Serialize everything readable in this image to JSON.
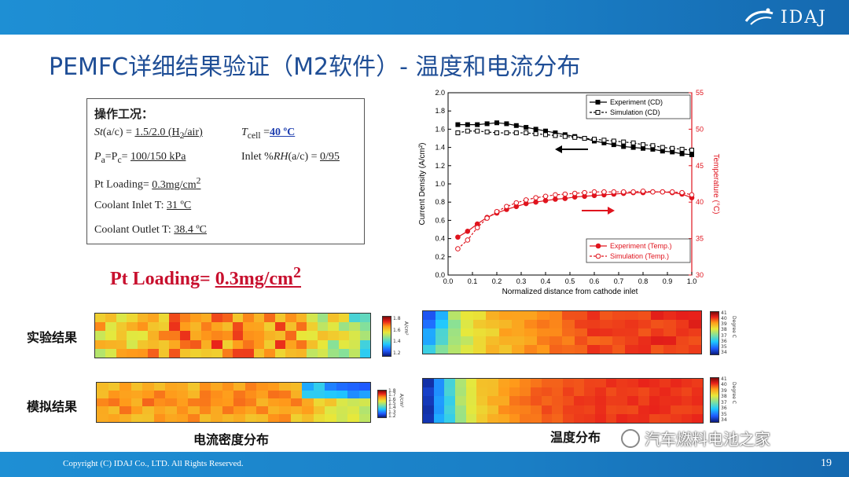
{
  "header": {
    "logo_text": "IDAJ"
  },
  "title": "PEMFC详细结果验证（M2软件）- 温度和电流分布",
  "conditions": {
    "heading": "操作工况：",
    "st_label": "St",
    "st_mid": "(a/c) = ",
    "st_val": "1.5/2.0 (H",
    "st_sub": "2",
    "st_tail": "/air)",
    "t_label": "T",
    "t_sub": "cell",
    "t_eq": " =",
    "t_val": "40 ºC",
    "p_label": "P",
    "p_sub_a": "a",
    "p_mid": "=P",
    "p_sub_c": "c",
    "p_eq": "= ",
    "p_val": "100/150 kPa",
    "rh_label": "Inlet %",
    "rh_italic": "RH",
    "rh_mid": "(a/c) = ",
    "rh_val": "0/95",
    "pt_label": "Pt Loading= ",
    "pt_val": "0.3mg/cm",
    "pt_sup": "2",
    "ci_label": "Coolant Inlet T: ",
    "ci_val": "31 ºC",
    "co_label": "Coolant Outlet T: ",
    "co_val": "38.4 ºC"
  },
  "pt_loading_big": {
    "label": "Pt Loading= ",
    "value": "0.3mg/cm",
    "sup": "2"
  },
  "chart_data": {
    "type": "line",
    "xlabel": "Normalized distance from cathode inlet",
    "ylabel_left": "Current Density (A/cm²)",
    "ylabel_right": "Temperature (°C)",
    "xlim": [
      0.0,
      1.0
    ],
    "ylim_left": [
      0.0,
      2.0
    ],
    "ylim_right": [
      30,
      55
    ],
    "x_ticks": [
      "0.0",
      "0.1",
      "0.2",
      "0.3",
      "0.4",
      "0.5",
      "0.6",
      "0.7",
      "0.8",
      "0.9",
      "1.0"
    ],
    "yl_ticks": [
      "0.0",
      "0.2",
      "0.4",
      "0.6",
      "0.8",
      "1.0",
      "1.2",
      "1.4",
      "1.6",
      "1.8",
      "2.0"
    ],
    "yr_ticks": [
      "30",
      "35",
      "40",
      "45",
      "50",
      "55"
    ],
    "colors": {
      "cd": "#000000",
      "temp": "#e0141e",
      "axis_right": "#e0141e"
    },
    "legend_cd": [
      "Experiment (CD)",
      "Simulation  (CD)"
    ],
    "legend_temp": [
      "Experiment (Temp.)",
      "Simulation  (Temp.)"
    ],
    "series": [
      {
        "name": "Experiment (CD)",
        "axis": "left",
        "filled": true,
        "x": [
          0.04,
          0.08,
          0.12,
          0.16,
          0.2,
          0.24,
          0.28,
          0.32,
          0.36,
          0.4,
          0.44,
          0.48,
          0.52,
          0.56,
          0.6,
          0.64,
          0.68,
          0.72,
          0.76,
          0.8,
          0.84,
          0.88,
          0.92,
          0.96,
          1.0
        ],
        "y": [
          1.65,
          1.65,
          1.65,
          1.66,
          1.67,
          1.66,
          1.64,
          1.62,
          1.6,
          1.58,
          1.56,
          1.54,
          1.52,
          1.5,
          1.47,
          1.45,
          1.43,
          1.41,
          1.4,
          1.39,
          1.38,
          1.36,
          1.35,
          1.33,
          1.32
        ]
      },
      {
        "name": "Simulation  (CD)",
        "axis": "left",
        "filled": false,
        "x": [
          0.04,
          0.08,
          0.12,
          0.16,
          0.2,
          0.24,
          0.28,
          0.32,
          0.36,
          0.4,
          0.44,
          0.48,
          0.52,
          0.56,
          0.6,
          0.64,
          0.68,
          0.72,
          0.76,
          0.8,
          0.84,
          0.88,
          0.92,
          0.96,
          1.0
        ],
        "y": [
          1.56,
          1.58,
          1.58,
          1.57,
          1.56,
          1.56,
          1.56,
          1.56,
          1.55,
          1.54,
          1.53,
          1.52,
          1.51,
          1.5,
          1.49,
          1.48,
          1.47,
          1.46,
          1.45,
          1.43,
          1.42,
          1.4,
          1.39,
          1.38,
          1.37
        ]
      },
      {
        "name": "Experiment (Temp.)",
        "axis": "right",
        "filled": true,
        "x": [
          0.04,
          0.08,
          0.12,
          0.16,
          0.2,
          0.24,
          0.28,
          0.32,
          0.36,
          0.4,
          0.44,
          0.48,
          0.52,
          0.56,
          0.6,
          0.64,
          0.68,
          0.72,
          0.76,
          0.8,
          0.84,
          0.88,
          0.92,
          0.96,
          1.0
        ],
        "y": [
          35.2,
          36.0,
          37.0,
          37.9,
          38.5,
          39.0,
          39.4,
          39.8,
          40.0,
          40.2,
          40.4,
          40.5,
          40.7,
          40.8,
          40.9,
          41.0,
          41.1,
          41.2,
          41.3,
          41.3,
          41.4,
          41.4,
          41.3,
          41.1,
          40.6
        ]
      },
      {
        "name": "Simulation  (Temp.)",
        "axis": "right",
        "filled": false,
        "x": [
          0.04,
          0.08,
          0.12,
          0.16,
          0.2,
          0.24,
          0.28,
          0.32,
          0.36,
          0.4,
          0.44,
          0.48,
          0.52,
          0.56,
          0.6,
          0.64,
          0.68,
          0.72,
          0.76,
          0.8,
          0.84,
          0.88,
          0.92,
          0.96,
          1.0
        ],
        "y": [
          33.6,
          34.8,
          36.5,
          37.8,
          38.7,
          39.4,
          39.9,
          40.3,
          40.6,
          40.8,
          41.0,
          41.1,
          41.2,
          41.3,
          41.4,
          41.4,
          41.4,
          41.4,
          41.4,
          41.5,
          41.4,
          41.4,
          41.4,
          41.3,
          41.0
        ]
      }
    ]
  },
  "labels": {
    "experiment": "实验结果",
    "simulation": "模拟结果",
    "current_map": "电流密度分布",
    "temp_map": "温度分布"
  },
  "colorbars": {
    "cd_exp": {
      "ticks": [
        "1.8",
        "1.6",
        "1.4",
        "1.2"
      ],
      "unit": "A/cm²"
    },
    "cd_sim": {
      "ticks": [
        "1.8",
        "1.7",
        "1.6",
        "1.5",
        "1.4",
        "1.3",
        "1.2"
      ],
      "unit": "A/cm²"
    },
    "t_exp": {
      "ticks": [
        "41",
        "40",
        "39",
        "38",
        "37",
        "36",
        "35",
        "34"
      ],
      "unit": "Degree C"
    },
    "t_sim": {
      "ticks": [
        "41",
        "40",
        "39",
        "38",
        "37",
        "36",
        "35",
        "34"
      ],
      "unit": "Degree C"
    }
  },
  "footer": {
    "copyright": "Copyright (C)  IDAJ Co., LTD. All Rights Reserved.",
    "page": "19"
  },
  "watermark": "汽车燃料电池之家"
}
